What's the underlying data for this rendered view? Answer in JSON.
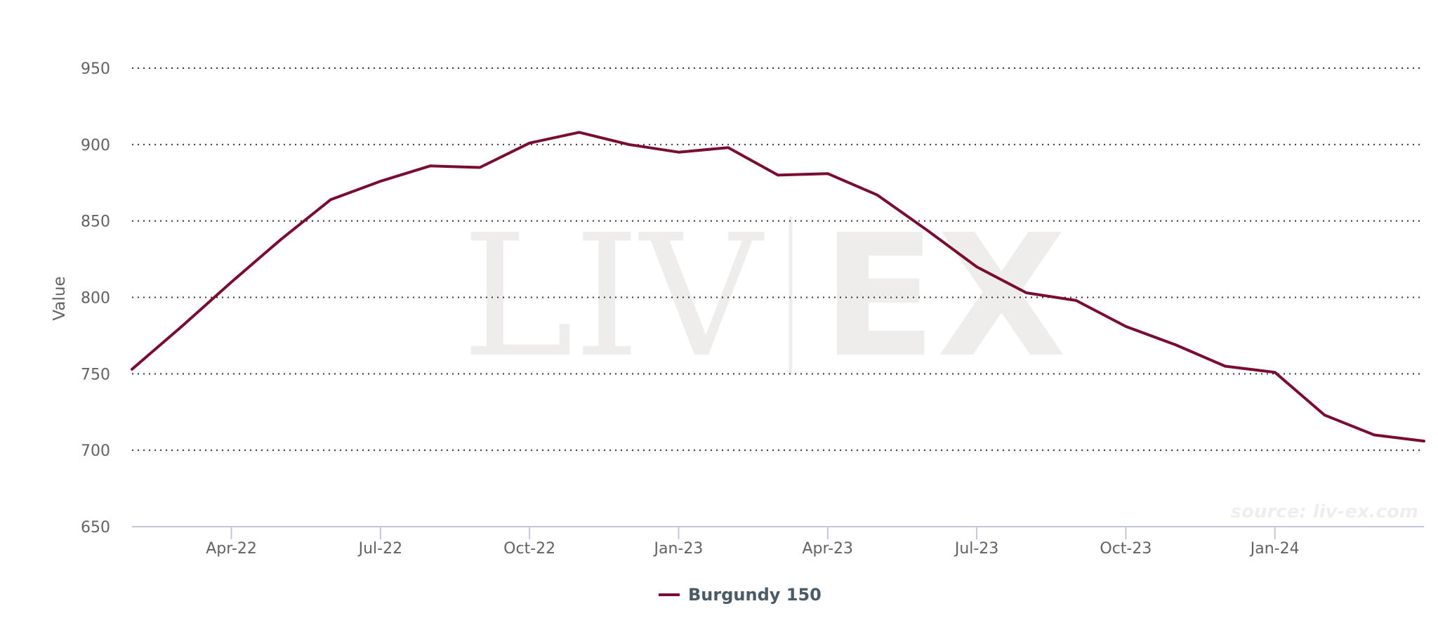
{
  "chart_data": {
    "type": "line",
    "title": "",
    "xlabel": "",
    "ylabel": "Value",
    "ylim": [
      650,
      950
    ],
    "yticks": [
      650,
      700,
      750,
      800,
      850,
      900,
      950
    ],
    "xticks": [
      "Apr-22",
      "Jul-22",
      "Oct-22",
      "Jan-23",
      "Apr-23",
      "Jul-23",
      "Oct-23",
      "Jan-24"
    ],
    "x": [
      "2022-02",
      "2022-03",
      "2022-04",
      "2022-05",
      "2022-06",
      "2022-07",
      "2022-08",
      "2022-09",
      "2022-10",
      "2022-11",
      "2022-12",
      "2023-01",
      "2023-02",
      "2023-03",
      "2023-04",
      "2023-05",
      "2023-06",
      "2023-07",
      "2023-08",
      "2023-09",
      "2023-10",
      "2023-11",
      "2023-12",
      "2024-01",
      "2024-02",
      "2024-03",
      "2024-04"
    ],
    "series": [
      {
        "name": "Burgundy 150",
        "color": "#7a0c2e",
        "values": [
          753,
          781,
          810,
          838,
          864,
          876,
          886,
          885,
          901,
          908,
          900,
          895,
          898,
          880,
          881,
          867,
          844,
          820,
          803,
          798,
          781,
          769,
          755,
          751,
          723,
          710,
          706
        ]
      }
    ],
    "grid": true,
    "legend": "bottom-center",
    "watermark": {
      "left": "LIV",
      "right": "EX"
    },
    "source_note": "source: liv-ex.com"
  }
}
